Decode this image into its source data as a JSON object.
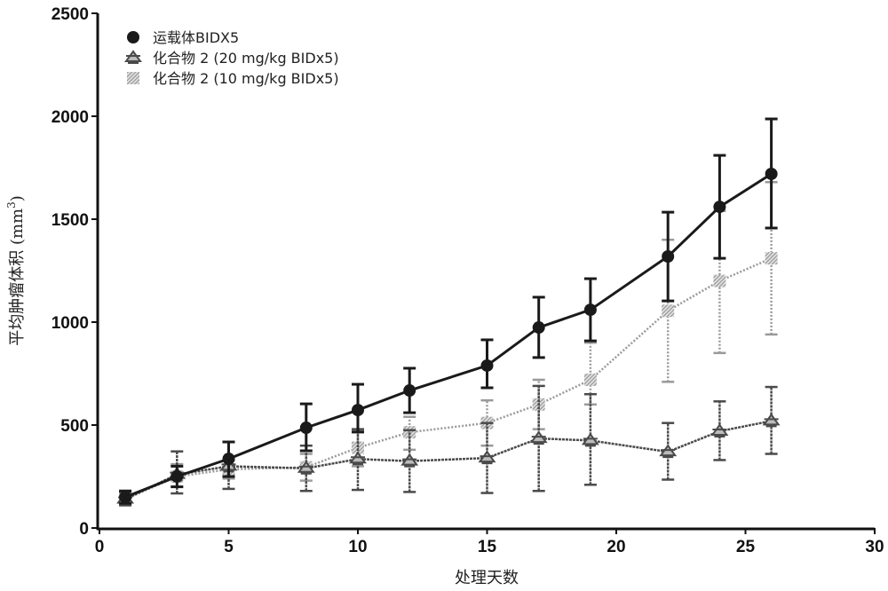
{
  "chart_data": {
    "type": "line",
    "xlabel": "处理天数",
    "ylabel": "平均肿瘤体积 (mm",
    "ylabel_sup": "3",
    "ylabel_close": ")",
    "xlim": [
      0,
      30
    ],
    "ylim": [
      0,
      2500
    ],
    "xticks": [
      "0",
      "5",
      "10",
      "15",
      "20",
      "25",
      "30"
    ],
    "yticks": [
      "0",
      "500",
      "1000",
      "1500",
      "2000",
      "2500"
    ],
    "grid": false,
    "legend_position": "top-left",
    "series": [
      {
        "name": "运载体BIDX5",
        "color": "#1a1a1a",
        "marker": "circle",
        "x": [
          1,
          3,
          5,
          8,
          10,
          12,
          15,
          17,
          19,
          22,
          24,
          26
        ],
        "y": [
          150,
          250,
          336,
          487,
          573,
          668,
          789,
          974,
          1060,
          1319,
          1560,
          1720
        ],
        "err_low": [
          120,
          200,
          250,
          375,
          466,
          560,
          681,
          828,
          909,
          1103,
          1310,
          1457
        ],
        "err_high": [
          180,
          300,
          418,
          603,
          698,
          776,
          914,
          1121,
          1211,
          1534,
          1810,
          1987
        ]
      },
      {
        "name": "化合物  2 (20 mg/kg BIDx5)",
        "color": "#4a4a4a",
        "marker": "star",
        "x": [
          1,
          3,
          5,
          8,
          10,
          12,
          15,
          17,
          19,
          22,
          24,
          26
        ],
        "y": [
          140,
          260,
          300,
          290,
          335,
          325,
          340,
          435,
          425,
          370,
          470,
          520
        ],
        "err_low": [
          110,
          168,
          190,
          180,
          185,
          175,
          170,
          180,
          210,
          235,
          330,
          360
        ],
        "err_high": [
          175,
          372,
          330,
          400,
          480,
          475,
          510,
          690,
          650,
          510,
          615,
          685
        ]
      },
      {
        "name": "化合物  2 (10 mg/kg BIDx5)",
        "color": "#9a9a9a",
        "marker": "hatched-square",
        "x": [
          1,
          3,
          5,
          8,
          10,
          12,
          15,
          17,
          19,
          22,
          24,
          26
        ],
        "y": [
          140,
          250,
          285,
          295,
          390,
          465,
          510,
          600,
          720,
          1055,
          1200,
          1310
        ],
        "err_low": [
          115,
          200,
          240,
          230,
          300,
          380,
          400,
          480,
          600,
          710,
          850,
          940
        ],
        "err_high": [
          170,
          310,
          330,
          360,
          470,
          540,
          620,
          720,
          900,
          1400,
          1540,
          1680
        ]
      }
    ]
  }
}
